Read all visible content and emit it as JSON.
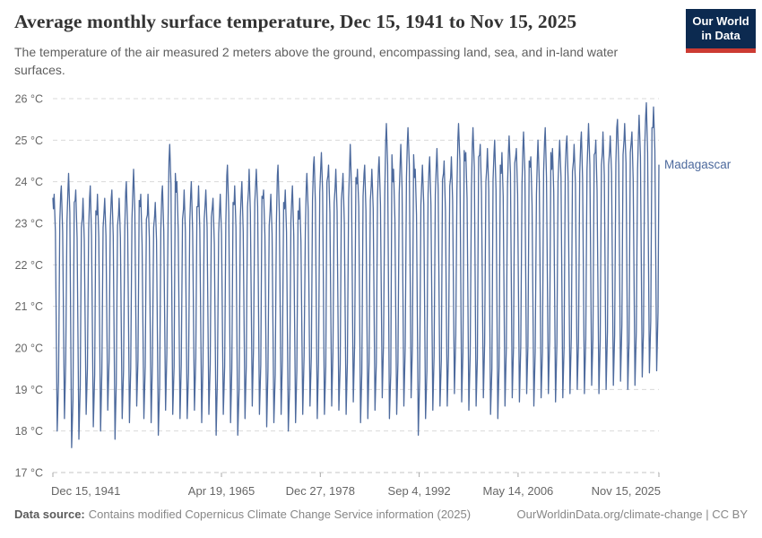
{
  "header": {
    "title": "Average monthly surface temperature, Dec 15, 1941 to Nov 15, 2025",
    "subtitle": "The temperature of the air measured 2 meters above the ground, encompassing land, sea, and in-land water surfaces.",
    "logo": {
      "line1": "Our World",
      "line2": "in Data",
      "bg_color": "#0c2a50",
      "accent_color": "#cc3b33"
    }
  },
  "chart_data": {
    "type": "line",
    "title": "Average monthly surface temperature, Dec 15, 1941 to Nov 15, 2025",
    "entity": "Madagascar",
    "unit": "°C",
    "series_color": "#4d6a9d",
    "grid": true,
    "legend_position": "end-of-line-label",
    "ylim": [
      17,
      26
    ],
    "y_ticks": [
      17,
      18,
      19,
      20,
      21,
      22,
      23,
      24,
      25,
      26
    ],
    "y_tick_suffix": " °C",
    "xlim": [
      1941.96,
      2025.87
    ],
    "x_tick_labels": [
      "Dec 15, 1941",
      "Apr 19, 1965",
      "Dec 27, 1978",
      "Sep 4, 1992",
      "May 14, 2006",
      "Nov 15, 2025"
    ],
    "x_tick_years": [
      1941.96,
      1965.3,
      1978.99,
      1992.68,
      2006.37,
      2025.87
    ],
    "start_point": {
      "label": "Dec 15, 1941",
      "x": 1941.96,
      "y": 23.6
    },
    "end_point": {
      "label": "Nov 15, 2025",
      "x": 2025.87,
      "y": 24.4
    },
    "first_cycle_year": 1942,
    "annual_max": [
      23.7,
      23.9,
      24.2,
      23.8,
      23.6,
      23.9,
      23.7,
      23.6,
      23.8,
      23.6,
      24.0,
      24.3,
      23.7,
      23.7,
      23.5,
      23.9,
      24.9,
      24.0,
      23.8,
      24.0,
      23.9,
      23.8,
      23.6,
      23.7,
      24.4,
      23.9,
      24.0,
      24.3,
      24.3,
      23.8,
      23.7,
      24.4,
      23.8,
      23.9,
      23.6,
      24.2,
      24.6,
      24.7,
      24.4,
      24.3,
      24.2,
      24.9,
      24.3,
      24.4,
      24.3,
      24.6,
      25.4,
      24.3,
      24.9,
      25.3,
      24.3,
      24.4,
      24.6,
      24.8,
      24.5,
      24.6,
      25.4,
      24.7,
      25.3,
      24.9,
      24.8,
      25.0,
      24.7,
      25.1,
      24.8,
      25.2,
      24.6,
      25.0,
      25.3,
      24.8,
      25.0,
      25.1,
      24.9,
      25.2,
      25.4,
      25.0,
      25.2,
      25.1,
      25.5,
      25.4,
      25.2,
      25.6,
      25.9,
      25.8
    ],
    "annual_min": [
      18.0,
      18.3,
      17.6,
      17.8,
      18.4,
      18.1,
      18.0,
      18.5,
      17.8,
      18.3,
      18.2,
      18.6,
      18.3,
      18.2,
      17.9,
      18.5,
      18.4,
      18.3,
      18.3,
      18.5,
      18.2,
      18.4,
      17.9,
      18.4,
      18.2,
      17.9,
      18.3,
      18.6,
      18.4,
      18.1,
      18.2,
      18.4,
      18.0,
      18.2,
      18.4,
      18.6,
      18.3,
      18.4,
      18.6,
      18.5,
      18.4,
      18.7,
      18.2,
      18.3,
      18.5,
      18.8,
      18.3,
      18.4,
      18.6,
      18.8,
      17.9,
      18.3,
      18.5,
      18.6,
      18.6,
      18.9,
      18.7,
      18.5,
      18.6,
      18.8,
      18.4,
      18.3,
      18.6,
      18.8,
      18.7,
      18.9,
      18.6,
      18.8,
      18.9,
      18.7,
      18.8,
      18.9,
      19.0,
      18.9,
      19.1,
      18.9,
      19.0,
      19.1,
      19.2,
      19.0,
      19.1,
      19.3,
      19.4,
      19.45
    ],
    "axis_text_color": "#666666",
    "gridline_color": "#dadada",
    "axis_line_color": "#c4c4c4"
  },
  "footer": {
    "source_label": "Data source:",
    "source_text": "Contains modified Copernicus Climate Change Service information (2025)",
    "credit": "OurWorldinData.org/climate-change | CC BY"
  }
}
